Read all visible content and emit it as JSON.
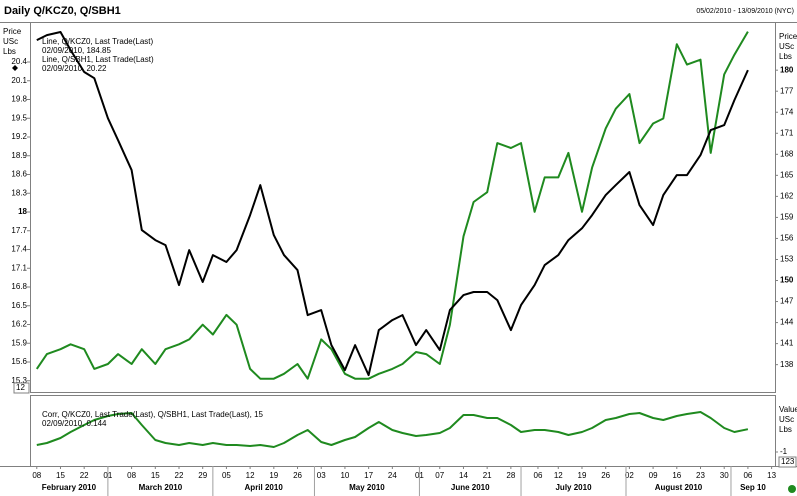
{
  "chart_data": [
    {
      "type": "line",
      "title": "Daily Q/KCZ0, Q/SBH1",
      "subtitle": "05/02/2010 - 13/09/2010 (NYC)",
      "ylabel": [
        "Price",
        "USc",
        "Lbs"
      ],
      "y2label": [
        "Price",
        "USc",
        "Lbs"
      ],
      "badge": "12",
      "grid": false,
      "xlim": [
        "2010-02-06",
        "2010-09-14"
      ],
      "ylim": [
        15.12,
        21.04
      ],
      "yticks": [
        15.3,
        15.6,
        15.9,
        16.2,
        16.5,
        16.8,
        17.1,
        17.4,
        17.7,
        18,
        18.3,
        18.6,
        18.9,
        19.2,
        19.5,
        19.8,
        20.1,
        20.4
      ],
      "y2lim": [
        134.1,
        186.87
      ],
      "y2ticks": [
        138,
        141,
        144,
        147,
        150,
        153,
        156,
        159,
        162,
        165,
        168,
        171,
        174,
        177,
        180
      ],
      "x": [
        "2010-02-08",
        "2010-02-11",
        "2010-02-15",
        "2010-02-18",
        "2010-02-22",
        "2010-02-25",
        "2010-03-01",
        "2010-03-04",
        "2010-03-08",
        "2010-03-11",
        "2010-03-15",
        "2010-03-18",
        "2010-03-22",
        "2010-03-25",
        "2010-03-29",
        "2010-04-01",
        "2010-04-05",
        "2010-04-08",
        "2010-04-12",
        "2010-04-15",
        "2010-04-19",
        "2010-04-22",
        "2010-04-26",
        "2010-04-29",
        "2010-05-03",
        "2010-05-06",
        "2010-05-10",
        "2010-05-13",
        "2010-05-17",
        "2010-05-20",
        "2010-05-24",
        "2010-05-27",
        "2010-05-31",
        "2010-06-03",
        "2010-06-07",
        "2010-06-10",
        "2010-06-14",
        "2010-06-17",
        "2010-06-21",
        "2010-06-24",
        "2010-06-28",
        "2010-07-01",
        "2010-07-05",
        "2010-07-08",
        "2010-07-12",
        "2010-07-15",
        "2010-07-19",
        "2010-07-22",
        "2010-07-26",
        "2010-07-29",
        "2010-08-02",
        "2010-08-05",
        "2010-08-09",
        "2010-08-12",
        "2010-08-16",
        "2010-08-19",
        "2010-08-23",
        "2010-08-26",
        "2010-08-30",
        "2010-09-02",
        "2010-09-06"
      ],
      "series": [
        {
          "name": "Line, Q/KCZ0, Last Trade(Last)",
          "last_label": "02/09/2010, 184.85",
          "color": "#1f8a1f",
          "axis": "y2",
          "values": [
            137.4,
            139.5,
            140.2,
            140.9,
            140.2,
            137.4,
            138.1,
            139.5,
            138.1,
            140.2,
            138.1,
            140.2,
            140.9,
            141.6,
            143.7,
            142.3,
            145.1,
            143.7,
            137.4,
            136.0,
            136.0,
            136.7,
            138.1,
            136.0,
            141.6,
            140.2,
            136.7,
            136.0,
            136.0,
            136.7,
            137.4,
            138.1,
            139.8,
            139.5,
            138.1,
            143.7,
            156.3,
            161.2,
            162.6,
            169.6,
            168.9,
            169.6,
            159.8,
            164.7,
            164.7,
            168.2,
            159.8,
            166.1,
            171.7,
            174.5,
            176.6,
            169.6,
            172.4,
            173.1,
            183.7,
            180.8,
            181.5,
            168.2,
            179.4,
            182.2,
            185.5
          ]
        },
        {
          "name": "Line, Q/SBH1, Last Trade(Last)",
          "last_label": "02/09/2010, 20.22",
          "color": "#000000",
          "values": [
            20.75,
            20.83,
            20.88,
            20.59,
            20.24,
            20.14,
            19.5,
            19.15,
            18.67,
            17.71,
            17.55,
            17.47,
            16.83,
            17.39,
            16.88,
            17.31,
            17.2,
            17.39,
            17.95,
            18.43,
            17.63,
            17.31,
            17.07,
            16.35,
            16.43,
            15.87,
            15.47,
            15.87,
            15.39,
            16.11,
            16.27,
            16.35,
            15.87,
            16.11,
            15.79,
            16.43,
            16.67,
            16.72,
            16.72,
            16.59,
            16.11,
            16.51,
            16.83,
            17.15,
            17.31,
            17.55,
            17.74,
            17.95,
            18.27,
            18.43,
            18.64,
            18.11,
            17.79,
            18.27,
            18.59,
            18.59,
            18.91,
            19.31,
            19.39,
            19.79,
            20.27
          ]
        }
      ]
    },
    {
      "type": "line",
      "y2label": [
        "Value",
        "USc",
        "Lbs"
      ],
      "badge": "123",
      "xlim": [
        "2010-02-06",
        "2010-09-14"
      ],
      "y2lim": [
        -1.7,
        1.85
      ],
      "y2ticks": [
        -1
      ],
      "xticks": [
        {
          "value": "2010-02-08",
          "label": "08"
        },
        {
          "value": "2010-02-15",
          "label": "15"
        },
        {
          "value": "2010-02-22",
          "label": "22"
        },
        {
          "value": "2010-03-01",
          "label": "01"
        },
        {
          "value": "2010-03-08",
          "label": "08"
        },
        {
          "value": "2010-03-15",
          "label": "15"
        },
        {
          "value": "2010-03-22",
          "label": "22"
        },
        {
          "value": "2010-03-29",
          "label": "29"
        },
        {
          "value": "2010-04-05",
          "label": "05"
        },
        {
          "value": "2010-04-12",
          "label": "12"
        },
        {
          "value": "2010-04-19",
          "label": "19"
        },
        {
          "value": "2010-04-26",
          "label": "26"
        },
        {
          "value": "2010-05-03",
          "label": "03"
        },
        {
          "value": "2010-05-10",
          "label": "10"
        },
        {
          "value": "2010-05-17",
          "label": "17"
        },
        {
          "value": "2010-05-24",
          "label": "24"
        },
        {
          "value": "2010-06-01",
          "label": "01"
        },
        {
          "value": "2010-06-07",
          "label": "07"
        },
        {
          "value": "2010-06-14",
          "label": "14"
        },
        {
          "value": "2010-06-21",
          "label": "21"
        },
        {
          "value": "2010-06-28",
          "label": "28"
        },
        {
          "value": "2010-07-06",
          "label": "06"
        },
        {
          "value": "2010-07-12",
          "label": "12"
        },
        {
          "value": "2010-07-19",
          "label": "19"
        },
        {
          "value": "2010-07-26",
          "label": "26"
        },
        {
          "value": "2010-08-02",
          "label": "02"
        },
        {
          "value": "2010-08-09",
          "label": "09"
        },
        {
          "value": "2010-08-16",
          "label": "16"
        },
        {
          "value": "2010-08-23",
          "label": "23"
        },
        {
          "value": "2010-08-30",
          "label": "30"
        },
        {
          "value": "2010-09-06",
          "label": "06"
        },
        {
          "value": "2010-09-13",
          "label": "13"
        }
      ],
      "months": [
        {
          "value": "2010-02",
          "label": "February 2010"
        },
        {
          "value": "2010-03",
          "label": "March 2010"
        },
        {
          "value": "2010-04",
          "label": "April 2010"
        },
        {
          "value": "2010-05",
          "label": "May 2010"
        },
        {
          "value": "2010-06",
          "label": "June 2010"
        },
        {
          "value": "2010-07",
          "label": "July 2010"
        },
        {
          "value": "2010-08",
          "label": "August 2010"
        },
        {
          "value": "2010-09",
          "label": "Sep 10"
        }
      ],
      "x": [
        "2010-02-08",
        "2010-02-11",
        "2010-02-15",
        "2010-02-18",
        "2010-02-22",
        "2010-02-25",
        "2010-03-01",
        "2010-03-04",
        "2010-03-08",
        "2010-03-11",
        "2010-03-15",
        "2010-03-18",
        "2010-03-22",
        "2010-03-25",
        "2010-03-29",
        "2010-04-01",
        "2010-04-05",
        "2010-04-08",
        "2010-04-12",
        "2010-04-15",
        "2010-04-19",
        "2010-04-22",
        "2010-04-26",
        "2010-04-29",
        "2010-05-03",
        "2010-05-06",
        "2010-05-10",
        "2010-05-13",
        "2010-05-17",
        "2010-05-20",
        "2010-05-24",
        "2010-05-27",
        "2010-05-31",
        "2010-06-03",
        "2010-06-07",
        "2010-06-10",
        "2010-06-14",
        "2010-06-17",
        "2010-06-21",
        "2010-06-24",
        "2010-06-28",
        "2010-07-01",
        "2010-07-05",
        "2010-07-08",
        "2010-07-12",
        "2010-07-15",
        "2010-07-19",
        "2010-07-22",
        "2010-07-26",
        "2010-07-29",
        "2010-08-02",
        "2010-08-05",
        "2010-08-09",
        "2010-08-12",
        "2010-08-16",
        "2010-08-19",
        "2010-08-23",
        "2010-08-26",
        "2010-08-30",
        "2010-09-02",
        "2010-09-06"
      ],
      "series": [
        {
          "name": "Corr, Q/KCZ0, Last Trade(Last), Q/SBH1, Last Trade(Last), 15",
          "last_label": "02/09/2010, 0.144",
          "color": "#1f8a1f",
          "axis": "y2",
          "values": [
            -0.65,
            -0.55,
            -0.3,
            0,
            0.35,
            0.6,
            0.8,
            0.9,
            0.95,
            0.35,
            -0.4,
            -0.55,
            -0.65,
            -0.55,
            -0.65,
            -0.55,
            -0.65,
            -0.65,
            -0.7,
            -0.65,
            -0.75,
            -0.55,
            -0.15,
            0.1,
            -0.5,
            -0.65,
            -0.4,
            -0.25,
            0.2,
            0.5,
            0.1,
            -0.05,
            -0.2,
            -0.15,
            -0.05,
            0.2,
            0.85,
            0.85,
            0.7,
            0.7,
            0.35,
            0,
            0.1,
            0.1,
            0,
            -0.15,
            0,
            0.2,
            0.6,
            0.7,
            0.9,
            0.95,
            0.7,
            0.6,
            0.8,
            0.9,
            1,
            0.7,
            0.2,
            0,
            0.14
          ]
        }
      ]
    }
  ]
}
